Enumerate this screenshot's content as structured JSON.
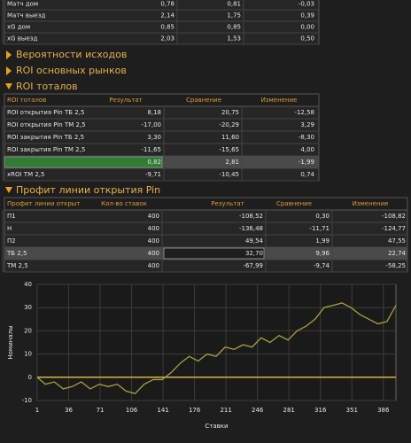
{
  "top_table": {
    "rows": [
      [
        "Матч дом",
        "0,78",
        "0,81",
        "-0,03"
      ],
      [
        "Матч выезд",
        "2,14",
        "1,75",
        "0,39"
      ],
      [
        "xG дом",
        "0,85",
        "0,85",
        "0,00"
      ],
      [
        "xG выезд",
        "2,03",
        "1,53",
        "0,50"
      ]
    ]
  },
  "sections": [
    "Вероятности исходов",
    "ROI основных рынков"
  ],
  "roi_totals": {
    "title": "ROI тоталов",
    "header": [
      "ROI тоталов",
      "Результат",
      "Сравнение",
      "Изменение"
    ],
    "highlighted_row": 4,
    "rows": [
      [
        "ROI открытия Pin ТБ 2,5",
        "8,18",
        "20,75",
        "-12,58"
      ],
      [
        "ROI открытия Pin ТМ 2,5",
        "-17,00",
        "-20,29",
        "3,29"
      ],
      [
        "ROI закрытия Pin ТБ 2,5",
        "3,30",
        "11,60",
        "-8,30"
      ],
      [
        "ROI закрытия Pin ТМ 2,5",
        "-11,65",
        "-15,65",
        "4,00"
      ],
      [
        "xROI ТБ 2,5",
        "0,82",
        "2,81",
        "-1,99"
      ],
      [
        "xROI ТМ 2,5",
        "-9,71",
        "-10,45",
        "0,74"
      ]
    ]
  },
  "profit": {
    "title": "Профит линии открытия Pin",
    "header": [
      "Профит линии открыт",
      "Кол-во ставок",
      "Результат",
      "Сравнение",
      "Изменение"
    ],
    "highlighted_row": 3,
    "rows": [
      [
        "П1",
        "400",
        "-108,52",
        "0,30",
        "-108,82"
      ],
      [
        "Н",
        "400",
        "-136,48",
        "-11,71",
        "-124,77"
      ],
      [
        "П2",
        "400",
        "49,54",
        "1,99",
        "47,55"
      ],
      [
        "ТБ 2,5",
        "400",
        "32,70",
        "9,96",
        "22,74"
      ],
      [
        "ТМ 2,5",
        "400",
        "-67,99",
        "-9,74",
        "-58,25"
      ]
    ]
  },
  "chart_data": {
    "type": "line",
    "x_label": "Ставки",
    "y_label": "Номиналы",
    "x": [
      1,
      10,
      20,
      30,
      40,
      50,
      60,
      70,
      80,
      90,
      100,
      110,
      120,
      130,
      140,
      150,
      160,
      170,
      180,
      190,
      200,
      210,
      220,
      230,
      240,
      250,
      260,
      270,
      280,
      290,
      300,
      310,
      320,
      330,
      340,
      350,
      360,
      370,
      380,
      390,
      400
    ],
    "series": [
      {
        "color": "#a3a33c",
        "values": [
          0,
          -3,
          -2,
          -5,
          -4,
          -2,
          -5,
          -3,
          -4,
          -3,
          -6,
          -7,
          -3,
          -1,
          -1,
          2,
          6,
          9,
          7,
          10,
          9,
          13,
          12,
          14,
          13,
          17,
          15,
          18,
          16,
          20,
          22,
          25,
          30,
          31,
          32,
          30,
          27,
          25,
          23,
          24,
          31
        ]
      }
    ],
    "xlim": [
      1,
      400
    ],
    "ylim": [
      -10,
      40
    ],
    "xticks": [
      1,
      36,
      71,
      106,
      141,
      176,
      211,
      246,
      281,
      316,
      351,
      386
    ],
    "yticks": [
      -10,
      0,
      10,
      20,
      30,
      40
    ],
    "grid": true,
    "zero_line_color": "#e0b040"
  }
}
